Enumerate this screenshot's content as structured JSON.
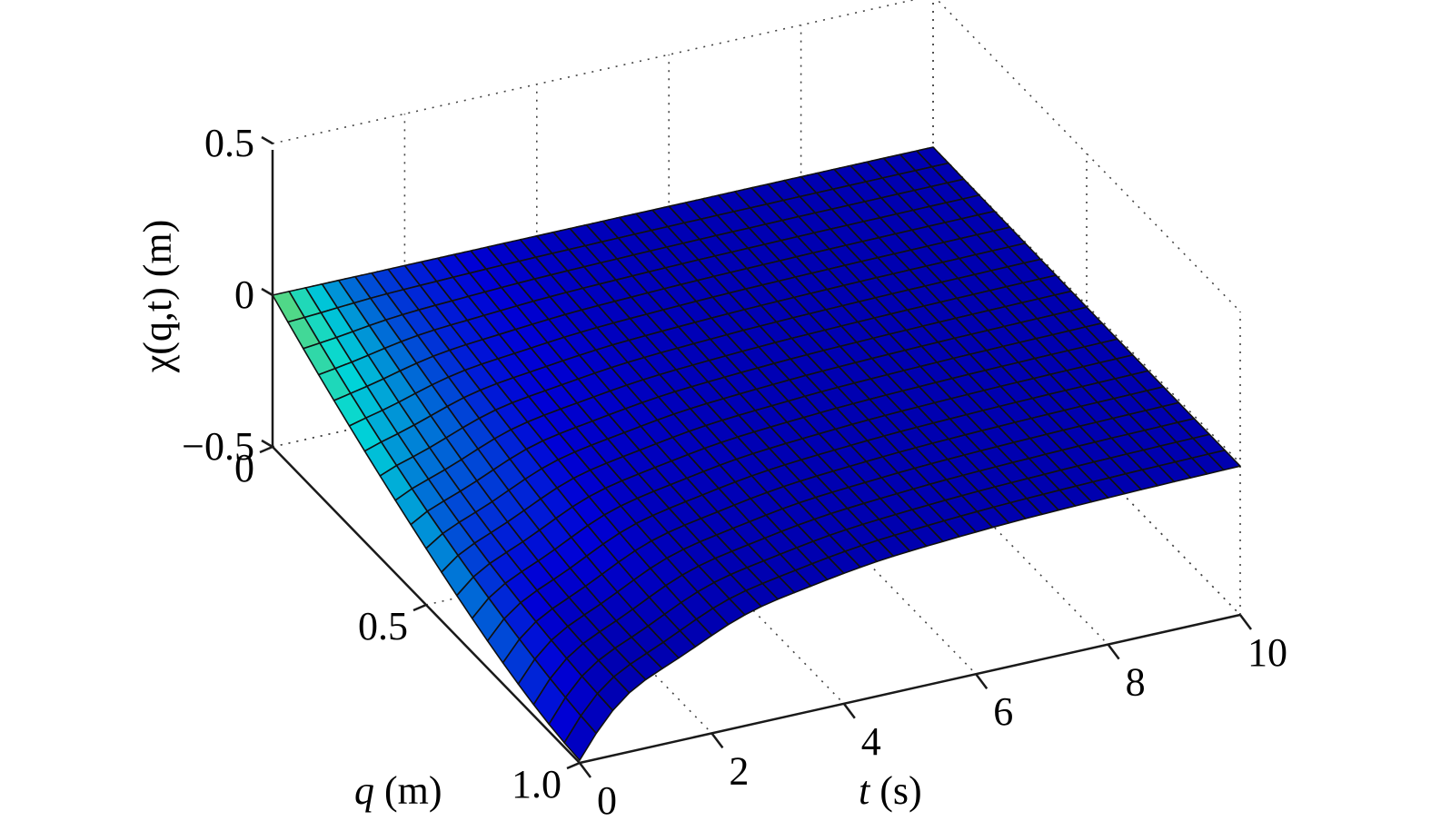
{
  "chart_data": {
    "type": "surface",
    "zlabel": "χ(q,t) (m)",
    "ylabel_var": "q",
    "ylabel_unit": " (m)",
    "xlabel_var": "t",
    "xlabel_unit": " (s)",
    "x_ticks": [
      "0",
      "2",
      "4",
      "6",
      "8",
      "10"
    ],
    "y_ticks": [
      "0",
      "0.5",
      "1.0"
    ],
    "z_ticks": [
      "0.5",
      "0",
      "−0.5"
    ],
    "x_tick_values": [
      0,
      2,
      4,
      6,
      8,
      10
    ],
    "y_tick_values": [
      0,
      0.5,
      1.0
    ],
    "z_tick_values": [
      0.5,
      0,
      -0.5
    ],
    "xlim": [
      0,
      10
    ],
    "ylim": [
      0,
      1.0
    ],
    "zlim": [
      -0.5,
      0.5
    ],
    "grid": true,
    "colormap": "jet",
    "grid_resolution": {
      "t_samples": 41,
      "q_samples": 21
    },
    "surface_description": "z is 0 at q=0 and decays toward 0 for large t; near t=0 the free end q=1 reaches about -0.47 m",
    "z_samples": {
      "t": [
        0,
        1,
        2,
        4,
        6,
        8,
        10
      ],
      "q": [
        0,
        0.5,
        1.0
      ],
      "values": [
        [
          0,
          0,
          0,
          0,
          0,
          0,
          0
        ],
        [
          -0.2,
          -0.13,
          -0.06,
          -0.02,
          -0.01,
          0,
          0
        ],
        [
          -0.47,
          -0.3,
          -0.15,
          -0.05,
          -0.02,
          -0.01,
          0
        ]
      ]
    }
  }
}
